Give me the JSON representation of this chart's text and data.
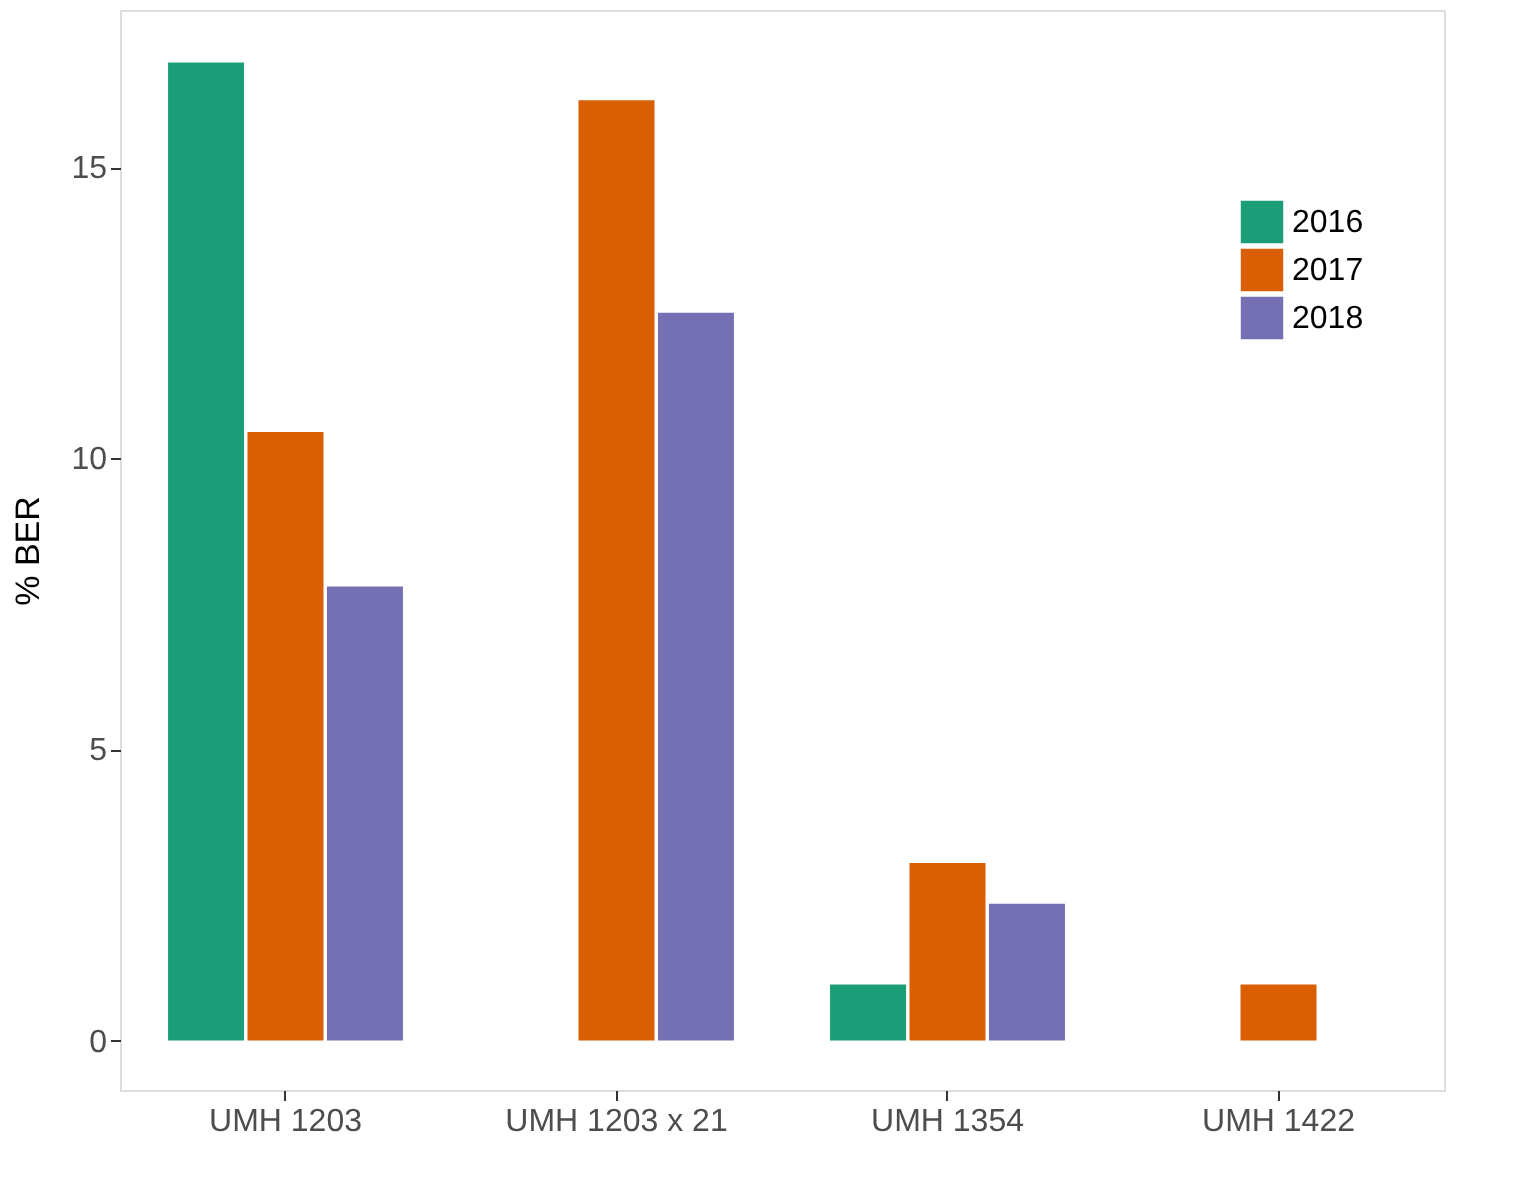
{
  "chart_data": {
    "type": "bar",
    "ylabel": "% BER",
    "categories": [
      "UMH 1203",
      "UMH 1203 x 21",
      "UMH 1354",
      "UMH 1422"
    ],
    "series": [
      {
        "name": "2016",
        "color": "#1b9e77",
        "values": [
          16.8,
          null,
          0.96,
          null
        ]
      },
      {
        "name": "2017",
        "color": "#d95f02",
        "values": [
          10.45,
          16.15,
          3.05,
          0.96
        ]
      },
      {
        "name": "2018",
        "color": "#7570b3",
        "values": [
          7.8,
          12.5,
          2.35,
          null
        ]
      }
    ],
    "ylim": [
      -0.85,
      17.7
    ],
    "yticks": [
      0,
      5,
      10,
      15
    ],
    "grid": false,
    "legend": "top right"
  }
}
